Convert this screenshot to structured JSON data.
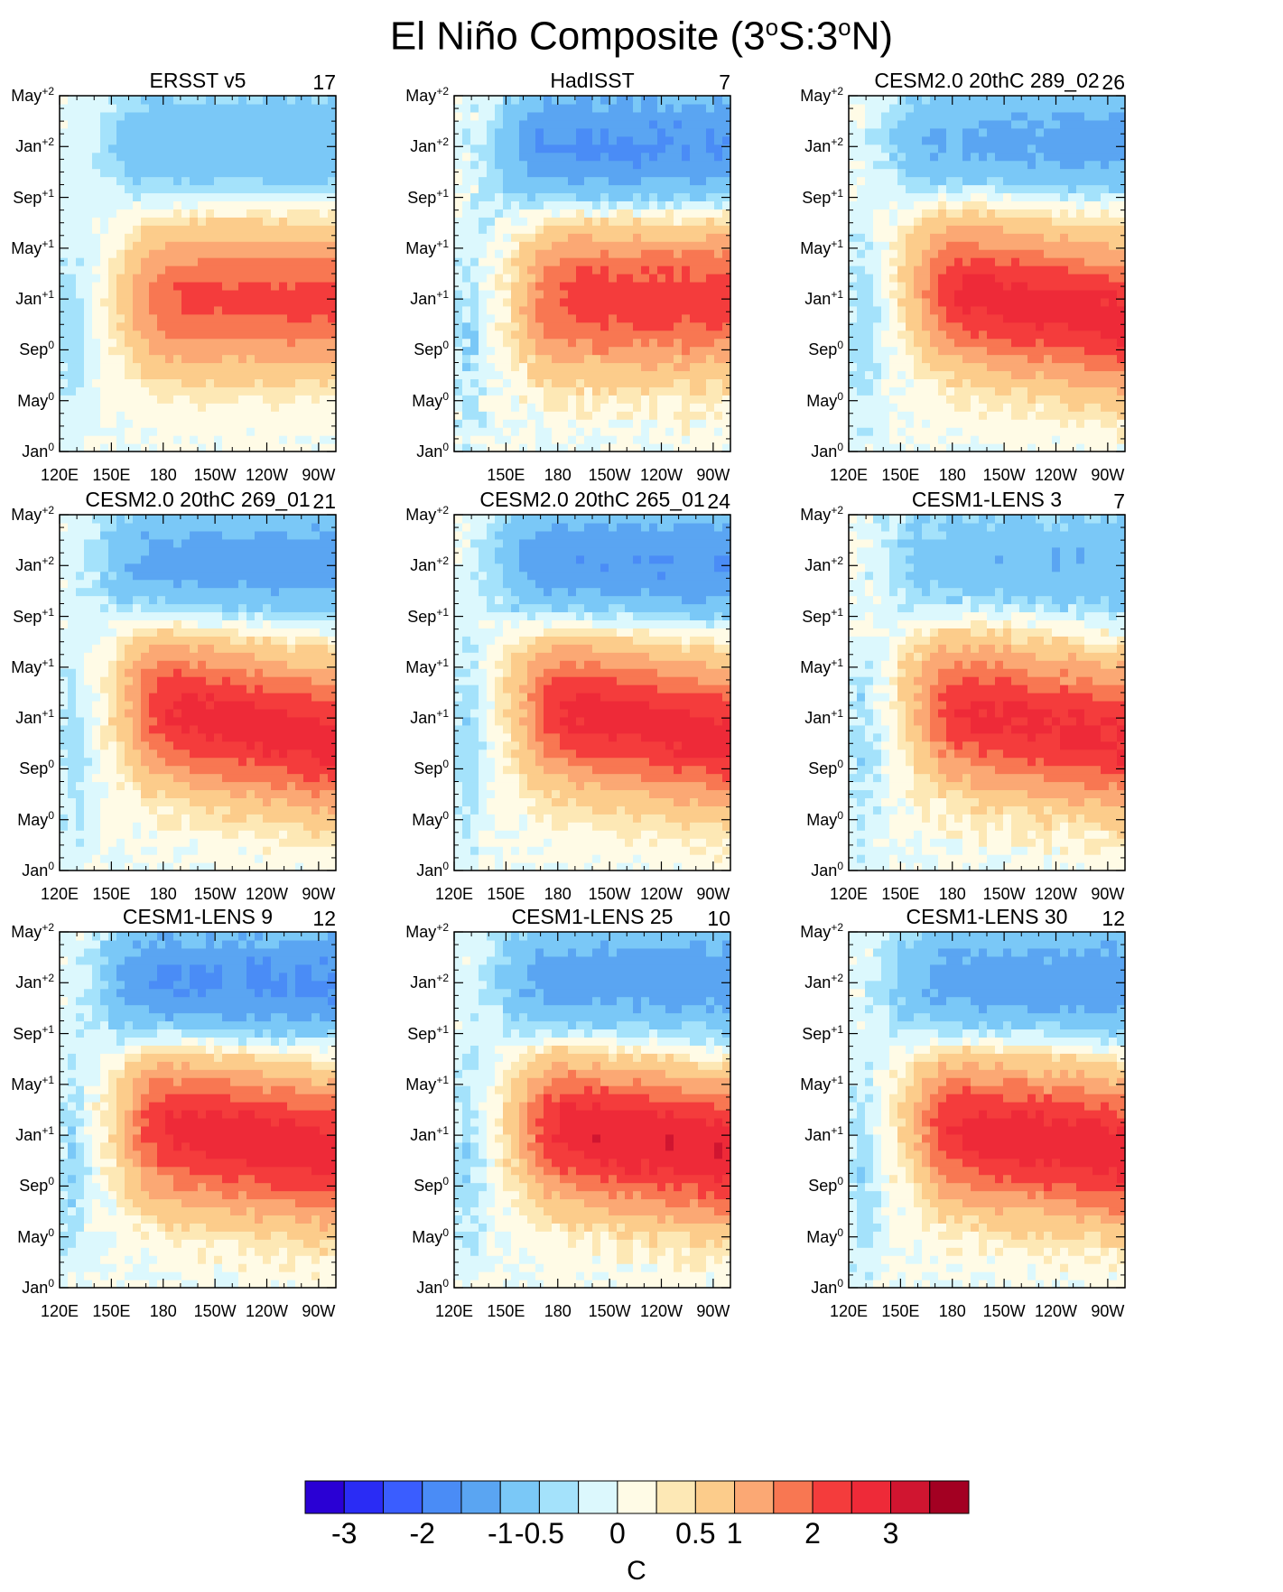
{
  "title": {
    "prefix": "El Niño Composite (3",
    "deg1": "o",
    "mid": "S:3",
    "deg2": "o",
    "suffix": "N)"
  },
  "chart_data": {
    "type": "heatmap",
    "x_axis": {
      "ticks": [
        "120E",
        "150E",
        "180",
        "150W",
        "120W",
        "90W"
      ]
    },
    "y_axis": {
      "ticks": [
        {
          "base": "Jan",
          "sup": "0"
        },
        {
          "base": "May",
          "sup": "0"
        },
        {
          "base": "Sep",
          "sup": "0"
        },
        {
          "base": "Jan",
          "sup": "+1"
        },
        {
          "base": "May",
          "sup": "+1"
        },
        {
          "base": "Sep",
          "sup": "+1"
        },
        {
          "base": "Jan",
          "sup": "+2"
        },
        {
          "base": "May",
          "sup": "+2"
        }
      ]
    },
    "panels": [
      {
        "title": "ERSST v5",
        "count": "17",
        "peak": 2.1,
        "cold": -0.9,
        "tilt": 0.0,
        "cold_onset": 17,
        "noise": 0.15
      },
      {
        "title": "HadISST",
        "count": "7",
        "peak": 2.3,
        "cold": -1.6,
        "tilt": 0.0,
        "cold_onset": 17,
        "noise": 0.4
      },
      {
        "title": "CESM2.0 20thC 289_02",
        "count": "26",
        "peak": 2.7,
        "cold": -1.2,
        "tilt": 0.6,
        "cold_onset": 19,
        "noise": 0.25
      },
      {
        "title": "CESM2.0 20thC 269_01",
        "count": "21",
        "peak": 2.7,
        "cold": -1.3,
        "tilt": 0.7,
        "cold_onset": 18,
        "noise": 0.25
      },
      {
        "title": "CESM2.0 20thC 265_01",
        "count": "24",
        "peak": 2.7,
        "cold": -1.5,
        "tilt": 0.6,
        "cold_onset": 18,
        "noise": 0.25
      },
      {
        "title": "CESM1-LENS 3",
        "count": "7",
        "peak": 2.6,
        "cold": -0.9,
        "tilt": 0.6,
        "cold_onset": 18,
        "noise": 0.35
      },
      {
        "title": "CESM1-LENS 9",
        "count": "12",
        "peak": 2.8,
        "cold": -1.6,
        "tilt": 0.5,
        "cold_onset": 17,
        "noise": 0.3
      },
      {
        "title": "CESM1-LENS 25",
        "count": "10",
        "peak": 2.9,
        "cold": -1.3,
        "tilt": 0.5,
        "cold_onset": 17,
        "noise": 0.3
      },
      {
        "title": "CESM1-LENS 30",
        "count": "12",
        "peak": 2.8,
        "cold": -1.3,
        "tilt": 0.5,
        "cold_onset": 17,
        "noise": 0.3
      }
    ],
    "colorbar": {
      "levels": [
        -3.5,
        -3,
        -2.5,
        -2,
        -1.5,
        -1,
        -0.5,
        -0.25,
        0,
        0.25,
        0.5,
        1,
        1.5,
        2,
        2.5,
        3,
        3.5
      ],
      "colors": [
        "#2a00d4",
        "#2a2cf5",
        "#3a5dff",
        "#4a8cf6",
        "#5aa5f2",
        "#7ac8f7",
        "#a4e2fb",
        "#dcf8fd",
        "#fffbe6",
        "#fde8b5",
        "#fccc8b",
        "#fba874",
        "#f87752",
        "#f43c3c",
        "#ee2a38",
        "#d01530",
        "#a30022"
      ],
      "labels": [
        "-3",
        "-2",
        "-1",
        "-0.5",
        "0",
        "0.5",
        "1",
        "2",
        "3"
      ],
      "unit": "C"
    }
  }
}
